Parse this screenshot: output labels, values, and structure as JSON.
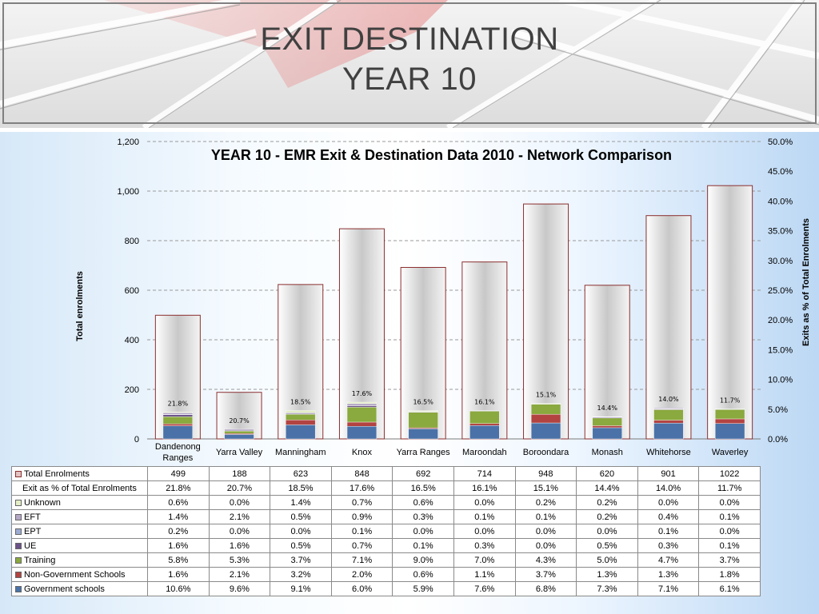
{
  "slide": {
    "title_line1": "EXIT DESTINATION",
    "title_line2": "YEAR 10"
  },
  "colors": {
    "government": "#4a72a8",
    "non_government": "#b24341",
    "training": "#8aa93e",
    "ue": "#6b5189",
    "ept": "#9cabd3",
    "eft": "#b5a8c6",
    "unknown": "#e3edc6",
    "total_bar": "#c8c8c8",
    "total_border": "#8b2e2e"
  },
  "chart_data": {
    "type": "bar",
    "title": "YEAR 10 - EMR Exit & Destination Data 2010 - Network Comparison",
    "ylabel": "Total enrolments",
    "y2label": "Exits as % of Total Enrolments",
    "ylim": [
      0,
      1200
    ],
    "yticks": [
      "0",
      "200",
      "400",
      "600",
      "800",
      "1,000",
      "1,200"
    ],
    "y2lim": [
      0,
      50
    ],
    "y2ticks": [
      "0.0%",
      "5.0%",
      "10.0%",
      "15.0%",
      "20.0%",
      "25.0%",
      "30.0%",
      "35.0%",
      "40.0%",
      "45.0%",
      "50.0%"
    ],
    "grid": true,
    "categories": [
      "Dandenong Ranges",
      "Yarra Valley",
      "Manningham",
      "Knox",
      "Yarra Ranges",
      "Maroondah",
      "Boroondara",
      "Monash",
      "Whitehorse",
      "Waverley"
    ],
    "total_enrolments": {
      "name": "Total Enrolments",
      "values": [
        499,
        188,
        623,
        848,
        692,
        714,
        948,
        620,
        901,
        1022
      ]
    },
    "exit_pct": {
      "name": "Exit as % of Total Enrolments",
      "values": [
        "21.8%",
        "20.7%",
        "18.5%",
        "17.6%",
        "16.5%",
        "16.1%",
        "15.1%",
        "14.4%",
        "14.0%",
        "11.7%"
      ]
    },
    "series": [
      {
        "name": "Government schools",
        "key": "government",
        "values": [
          "10.6%",
          "9.6%",
          "9.1%",
          "6.0%",
          "5.9%",
          "7.6%",
          "6.8%",
          "7.3%",
          "7.1%",
          "6.1%"
        ]
      },
      {
        "name": "Non-Government Schools",
        "key": "non_government",
        "values": [
          "1.6%",
          "2.1%",
          "3.2%",
          "2.0%",
          "0.6%",
          "1.1%",
          "3.7%",
          "1.3%",
          "1.3%",
          "1.8%"
        ]
      },
      {
        "name": "Training",
        "key": "training",
        "values": [
          "5.8%",
          "5.3%",
          "3.7%",
          "7.1%",
          "9.0%",
          "7.0%",
          "4.3%",
          "5.0%",
          "4.7%",
          "3.7%"
        ]
      },
      {
        "name": "UE",
        "key": "ue",
        "values": [
          "1.6%",
          "1.6%",
          "0.5%",
          "0.7%",
          "0.1%",
          "0.3%",
          "0.0%",
          "0.5%",
          "0.3%",
          "0.1%"
        ]
      },
      {
        "name": "EPT",
        "key": "ept",
        "values": [
          "0.2%",
          "0.0%",
          "0.0%",
          "0.1%",
          "0.0%",
          "0.0%",
          "0.0%",
          "0.0%",
          "0.1%",
          "0.0%"
        ]
      },
      {
        "name": "EFT",
        "key": "eft",
        "values": [
          "1.4%",
          "2.1%",
          "0.5%",
          "0.9%",
          "0.3%",
          "0.1%",
          "0.1%",
          "0.2%",
          "0.4%",
          "0.1%"
        ]
      },
      {
        "name": "Unknown",
        "key": "unknown",
        "values": [
          "0.6%",
          "0.0%",
          "1.4%",
          "0.7%",
          "0.6%",
          "0.0%",
          "0.2%",
          "0.2%",
          "0.0%",
          "0.0%"
        ]
      }
    ],
    "table_row_order": [
      "Total Enrolments",
      "Exit as % of Total Enrolments",
      "Unknown",
      "EFT",
      "EPT",
      "UE",
      "Training",
      "Non-Government Schools",
      "Government schools"
    ]
  }
}
